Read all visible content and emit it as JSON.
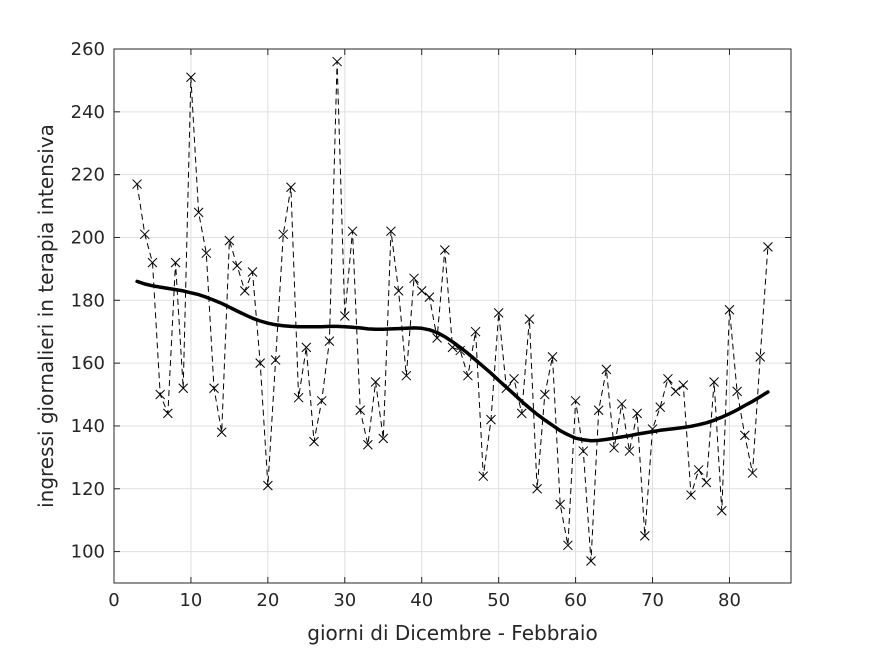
{
  "chart_data": {
    "type": "line",
    "xlabel": "giorni di Dicembre - Febbraio",
    "ylabel": "ingressi giornalieri in terapia intensiva",
    "xlim": [
      0,
      88
    ],
    "ylim": [
      90,
      260
    ],
    "xticks": [
      0,
      10,
      20,
      30,
      40,
      50,
      60,
      70,
      80
    ],
    "yticks": [
      100,
      120,
      140,
      160,
      180,
      200,
      220,
      240,
      260
    ],
    "grid": true,
    "series": [
      {
        "style": "dashed-with-x-markers",
        "color": "#000000",
        "x": [
          3,
          4,
          5,
          6,
          7,
          8,
          9,
          10,
          11,
          12,
          13,
          14,
          15,
          16,
          17,
          18,
          19,
          20,
          21,
          22,
          23,
          24,
          25,
          26,
          27,
          28,
          29,
          30,
          31,
          32,
          33,
          34,
          35,
          36,
          37,
          38,
          39,
          40,
          41,
          42,
          43,
          44,
          45,
          46,
          47,
          48,
          49,
          50,
          51,
          52,
          53,
          54,
          55,
          56,
          57,
          58,
          59,
          60,
          61,
          62,
          63,
          64,
          65,
          66,
          67,
          68,
          69,
          70,
          71,
          72,
          73,
          74,
          75,
          76,
          77,
          78,
          79,
          80,
          81,
          82,
          83,
          84,
          85
        ],
        "values": [
          217,
          201,
          192,
          150,
          144,
          192,
          152,
          251,
          208,
          195,
          152,
          138,
          199,
          191,
          183,
          189,
          160,
          121,
          161,
          201,
          216,
          149,
          165,
          135,
          148,
          167,
          256,
          175,
          202,
          145,
          134,
          154,
          136,
          202,
          183,
          156,
          187,
          183,
          181,
          168,
          196,
          165,
          164,
          156,
          170,
          124,
          142,
          176,
          152,
          155,
          144,
          174,
          120,
          150,
          162,
          115,
          102,
          148,
          132,
          97,
          145,
          158,
          133,
          147,
          132,
          144,
          105,
          139,
          146,
          155,
          151,
          153,
          118,
          126,
          122,
          154,
          113,
          177,
          151,
          137,
          125,
          162,
          197
        ]
      },
      {
        "style": "solid-thick",
        "color": "#000000",
        "x": [
          3,
          4,
          5,
          6,
          7,
          8,
          9,
          10,
          11,
          12,
          13,
          14,
          15,
          16,
          17,
          18,
          19,
          20,
          21,
          22,
          23,
          24,
          25,
          26,
          27,
          28,
          29,
          30,
          31,
          32,
          33,
          34,
          35,
          36,
          37,
          38,
          39,
          40,
          41,
          42,
          43,
          44,
          45,
          46,
          47,
          48,
          49,
          50,
          51,
          52,
          53,
          54,
          55,
          56,
          57,
          58,
          59,
          60,
          61,
          62,
          63,
          64,
          65,
          66,
          67,
          68,
          69,
          70,
          71,
          72,
          73,
          74,
          75,
          76,
          77,
          78,
          79,
          80,
          81,
          82,
          83,
          84,
          85
        ],
        "values": [
          186,
          185.2,
          184.6,
          184.2,
          183.8,
          183.4,
          183,
          182.4,
          181.8,
          181,
          180,
          179,
          177.8,
          176.6,
          175.4,
          174.3,
          173.4,
          172.7,
          172.2,
          171.9,
          171.7,
          171.6,
          171.6,
          171.6,
          171.6,
          171.7,
          171.7,
          171.6,
          171.4,
          171.2,
          170.9,
          170.8,
          170.8,
          170.9,
          171,
          171.1,
          171.2,
          171.1,
          170.6,
          169.7,
          168.4,
          166.8,
          165,
          163.1,
          161,
          158.9,
          156.8,
          154.5,
          152.3,
          150.1,
          147.8,
          145.7,
          143.7,
          141.9,
          140.2,
          138.5,
          137.2,
          136.1,
          135.6,
          135.3,
          135.4,
          135.7,
          136.1,
          136.5,
          136.9,
          137.4,
          137.8,
          138.2,
          138.6,
          138.9,
          139.2,
          139.5,
          139.9,
          140.4,
          141,
          141.8,
          142.8,
          143.9,
          145.1,
          146.5,
          147.8,
          149.3,
          150.8
        ]
      }
    ]
  }
}
